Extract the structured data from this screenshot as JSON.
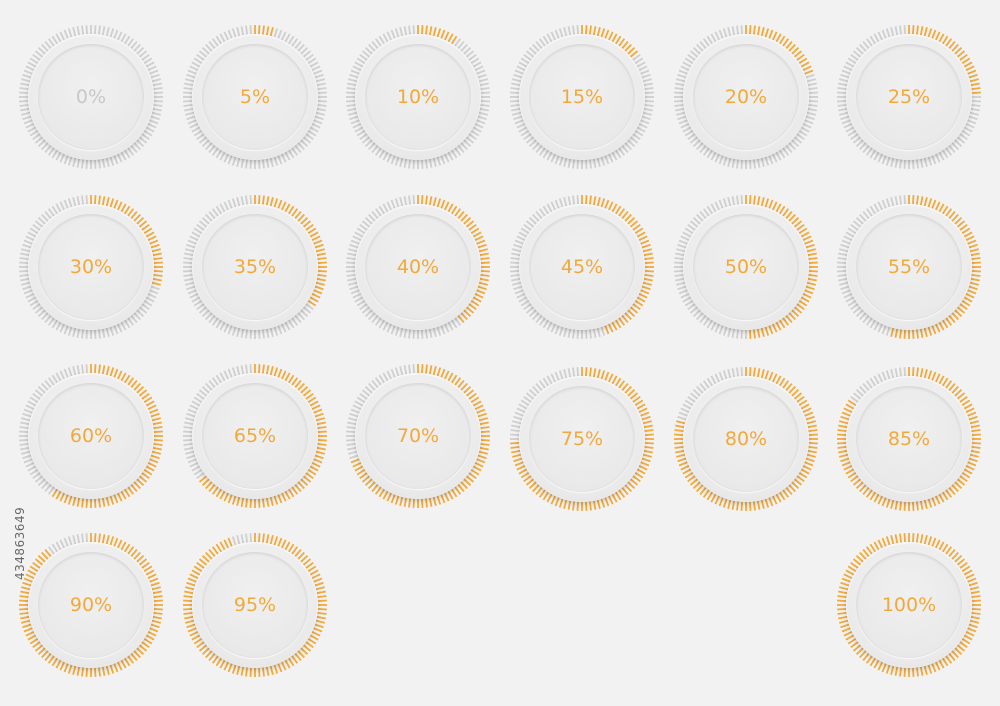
{
  "colors": {
    "background": "#f2f2f2",
    "tick_active": "#f2a93b",
    "tick_inactive": "#cfcfcf",
    "label_active": "#f2a93b",
    "label_zero": "#c8c8c8"
  },
  "tick_count": 100,
  "gauges": [
    {
      "label": "0%",
      "progress": 0
    },
    {
      "label": "5%",
      "progress": 5
    },
    {
      "label": "10%",
      "progress": 10
    },
    {
      "label": "15%",
      "progress": 15
    },
    {
      "label": "20%",
      "progress": 20
    },
    {
      "label": "25%",
      "progress": 25
    },
    {
      "label": "30%",
      "progress": 30
    },
    {
      "label": "35%",
      "progress": 35
    },
    {
      "label": "40%",
      "progress": 40
    },
    {
      "label": "45%",
      "progress": 45
    },
    {
      "label": "50%",
      "progress": 50
    },
    {
      "label": "55%",
      "progress": 55
    },
    {
      "label": "60%",
      "progress": 60
    },
    {
      "label": "65%",
      "progress": 65
    },
    {
      "label": "70%",
      "progress": 70
    },
    {
      "label": "75%",
      "progress": 75
    },
    {
      "label": "80%",
      "progress": 80
    },
    {
      "label": "85%",
      "progress": 85
    },
    {
      "label": "90%",
      "progress": 90
    },
    {
      "label": "95%",
      "progress": 95
    },
    {
      "label": "100%",
      "progress": 100
    }
  ],
  "stock_id": "434863649"
}
